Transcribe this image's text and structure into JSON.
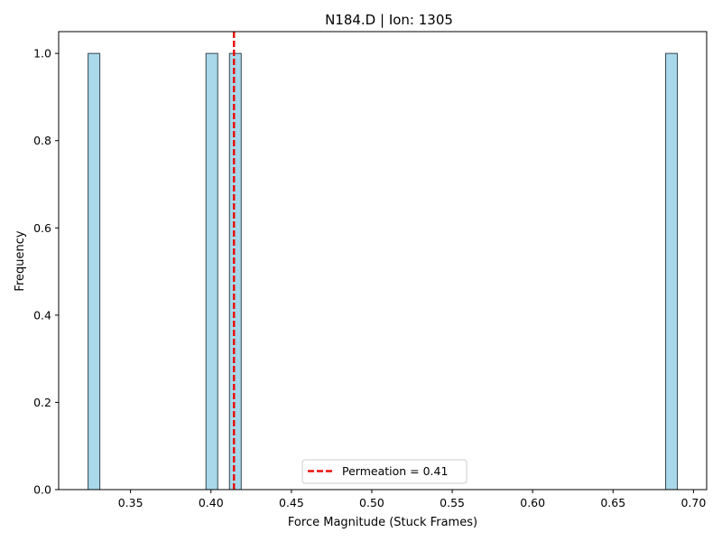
{
  "chart_data": {
    "type": "bar",
    "title": "N184.D | Ion: 1305",
    "xlabel": "Force Magnitude (Stuck Frames)",
    "ylabel": "Frequency",
    "xlim": [
      0.3053,
      0.7082
    ],
    "ylim": [
      0,
      1.05
    ],
    "xticks": [
      0.35,
      0.4,
      0.45,
      0.5,
      0.55,
      0.6,
      0.65,
      0.7
    ],
    "xtick_labels": [
      "0.35",
      "0.40",
      "0.45",
      "0.50",
      "0.55",
      "0.60",
      "0.65",
      "0.70"
    ],
    "yticks": [
      0.0,
      0.2,
      0.4,
      0.6,
      0.8,
      1.0
    ],
    "ytick_labels": [
      "0.0",
      "0.2",
      "0.4",
      "0.6",
      "0.8",
      "1.0"
    ],
    "bin_width": 0.0073,
    "bars": [
      {
        "x_start": 0.3236,
        "value": 1
      },
      {
        "x_start": 0.3969,
        "value": 1
      },
      {
        "x_start": 0.4115,
        "value": 1
      },
      {
        "x_start": 0.6827,
        "value": 1
      }
    ],
    "reference_line": {
      "x": 0.4143,
      "label": "Permeation = 0.41",
      "color": "#e8110f",
      "style": "dashed"
    },
    "bar_fill": "#a8d8ea",
    "bar_edge": "#36454f",
    "legend": {
      "position": "bottom-center",
      "entries": [
        "Permeation = 0.41"
      ]
    },
    "grid": false
  }
}
